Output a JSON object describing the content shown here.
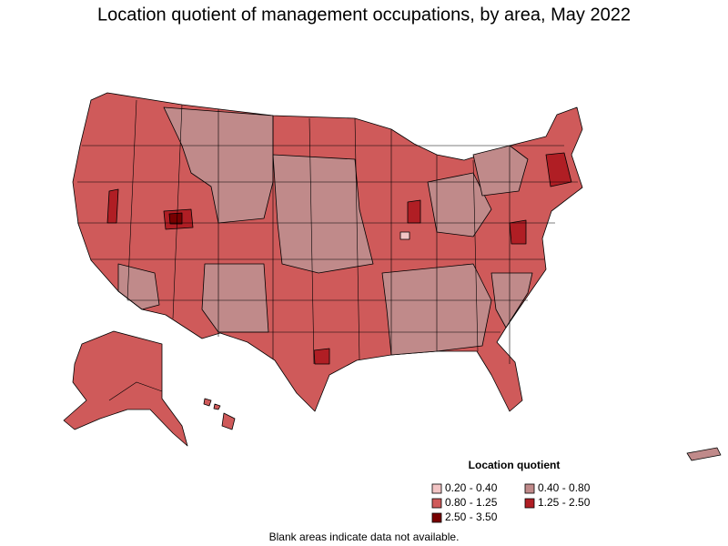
{
  "title": "Location quotient of management occupations, by area, May 2022",
  "legend": {
    "title": "Location quotient",
    "items": [
      {
        "label": "0.20 - 0.40",
        "color": "#f2c4c4"
      },
      {
        "label": "0.40 - 0.80",
        "color": "#c08a8a"
      },
      {
        "label": "0.80 - 1.25",
        "color": "#cf5a5a"
      },
      {
        "label": "1.25 - 2.50",
        "color": "#b01e24"
      },
      {
        "label": "2.50 - 3.50",
        "color": "#780000"
      }
    ]
  },
  "footnote": "Blank areas indicate data not available."
}
